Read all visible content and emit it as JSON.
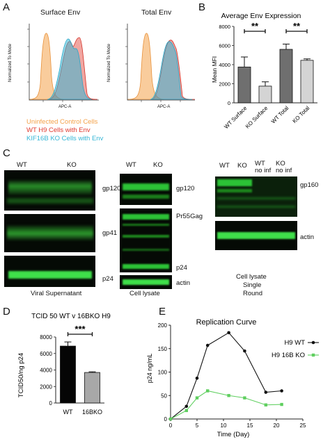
{
  "panel_labels": {
    "a": "A",
    "b": "B",
    "c": "C",
    "d": "D",
    "e": "E"
  },
  "panelA": {
    "left_title": "Surface Env",
    "right_title": "Total Env",
    "ylabel": "Normalized To Mode",
    "xlabel": "APC-A",
    "legend": [
      {
        "text": "Uninfected Control Cells",
        "color": "#f4a24a"
      },
      {
        "text": "WT H9 Cells with Env",
        "color": "#e03a2f"
      },
      {
        "text": "KIF16B KO Cells with Env",
        "color": "#35b6d6"
      }
    ]
  },
  "panelC": {
    "viral_sup": {
      "lanes": [
        "WT",
        "KO"
      ],
      "bands": [
        "gp120",
        "gp41",
        "p24"
      ],
      "caption": "Viral Supernatant"
    },
    "cell_lysate": {
      "lanes": [
        "WT",
        "KO"
      ],
      "bands": [
        "gp120",
        "Pr55Gag",
        "p24",
        "actin"
      ],
      "caption": "Cell lysate"
    },
    "single_round": {
      "lanes": [
        "WT",
        "KO",
        "WT\nno inf",
        "KO\nno inf"
      ],
      "lane_top": [
        "WT",
        "KO",
        "WT",
        "KO"
      ],
      "lane_bottom": [
        "",
        "",
        "no inf",
        "no inf"
      ],
      "bands": [
        "gp160",
        "actin"
      ],
      "caption_lines": [
        "Cell lysate",
        "Single",
        "Round"
      ]
    }
  },
  "colors": {
    "blot_green": "#2fd13a",
    "bar_dark": "#6f6f6f",
    "bar_light": "#d4d4d4",
    "wt_line": "#111111",
    "ko_line": "#5fcf5f",
    "bar_black": "#050505",
    "bar_gray": "#a8a8a8"
  },
  "chart_data": [
    {
      "id": "B",
      "type": "bar",
      "title": "Average Env Expression",
      "ylabel": "Mean MFI",
      "xlabel": "",
      "categories": [
        "WT Surface",
        "KO Surface",
        "WT Total",
        "KO Total"
      ],
      "values": [
        3750,
        1750,
        5600,
        4450
      ],
      "errors": [
        1050,
        450,
        550,
        150
      ],
      "ylim": [
        0,
        8000
      ],
      "yticks": [
        0,
        2000,
        4000,
        6000,
        8000
      ],
      "significance": [
        {
          "pair": [
            0,
            1
          ],
          "label": "**"
        },
        {
          "pair": [
            2,
            3
          ],
          "label": "**"
        }
      ]
    },
    {
      "id": "D",
      "type": "bar",
      "title": "TCID 50 WT v 16BKO H9",
      "ylabel": "TCID50/ng p24",
      "xlabel": "",
      "categories": [
        "WT",
        "16BKO"
      ],
      "values": [
        6900,
        3700
      ],
      "errors": [
        500,
        80
      ],
      "ylim": [
        0,
        8000
      ],
      "yticks": [
        0,
        2000,
        4000,
        6000,
        8000
      ],
      "significance": [
        {
          "pair": [
            0,
            1
          ],
          "label": "***"
        }
      ]
    },
    {
      "id": "E",
      "type": "line",
      "title": "Replication Curve",
      "xlabel": "Time (Day)",
      "ylabel": "p24 ng/mL",
      "xlim": [
        0,
        25
      ],
      "ylim": [
        0,
        200
      ],
      "xticks": [
        0,
        5,
        10,
        15,
        20,
        25
      ],
      "yticks": [
        0,
        50,
        100,
        150,
        200
      ],
      "series": [
        {
          "name": "H9 WT",
          "x": [
            0,
            3,
            5,
            7,
            11,
            14,
            18,
            21
          ],
          "y": [
            0,
            27,
            87,
            157,
            184,
            145,
            57,
            60
          ]
        },
        {
          "name": "H9 16B KO",
          "x": [
            0,
            3,
            5,
            7,
            11,
            14,
            18,
            21
          ],
          "y": [
            0,
            18,
            45,
            60,
            50,
            45,
            30,
            31
          ]
        }
      ]
    }
  ]
}
